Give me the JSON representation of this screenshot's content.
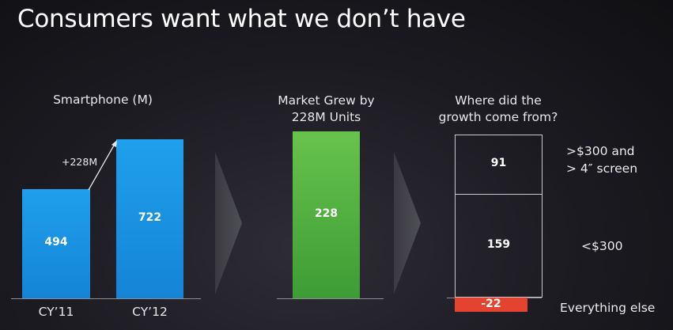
{
  "slide": {
    "title": "Consumers want what we don’t have"
  },
  "panels": {
    "left_title": "Smartphone (M)",
    "middle_title_line1": "Market Grew by",
    "middle_title_line2": "228M Units",
    "right_title_line1": "Where did the",
    "right_title_line2": "growth come from?",
    "growth_annotation": "+228M"
  },
  "chart_data": [
    {
      "type": "bar",
      "title": "Smartphone (M)",
      "categories": [
        "CY’11",
        "CY’12"
      ],
      "values": [
        494,
        722
      ],
      "labels": [
        "494",
        "722"
      ],
      "color": "#1a93e2"
    },
    {
      "type": "bar",
      "title": "Market Grew by 228M Units",
      "categories": [
        ""
      ],
      "values": [
        228
      ],
      "labels": [
        "228"
      ],
      "color": "#52b040"
    },
    {
      "type": "bar",
      "title": "Where did the growth come from?",
      "stacked": true,
      "series": [
        {
          "name": "<$300",
          "value": 159,
          "label": "159"
        },
        {
          "name": ">$300 and > 4″ screen",
          "value": 91,
          "label": "91"
        },
        {
          "name": "Everything else",
          "value": -22,
          "label": "-22"
        }
      ],
      "legend_lines": {
        "top_line1": ">$300 and",
        "top_line2": "> 4″ screen",
        "middle": "<$300",
        "bottom": "Everything else"
      },
      "negative_color": "#e4432f"
    }
  ]
}
